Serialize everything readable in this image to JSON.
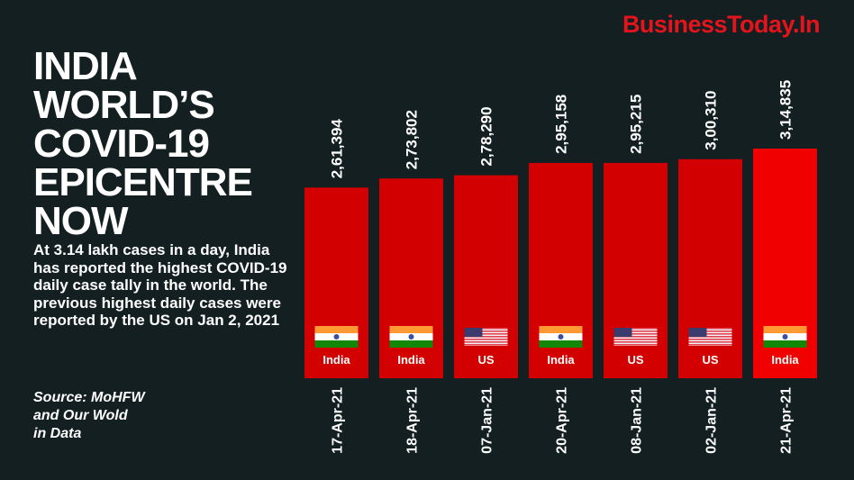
{
  "logo": "BusinessToday.In",
  "title": "INDIA WORLD’S COVID-19 EPICENTRE NOW",
  "title_lines": [
    "INDIA",
    "WORLD’S",
    "COVID-19",
    "EPICENTRE",
    "NOW"
  ],
  "description": "At 3.14 lakh cases in a day, India has reported the highest COVID-19 daily case tally in the world. The previous highest daily cases were reported by the US on Jan 2, 2021",
  "source": "Source: MoHFW\nand Our Wold\nin Data",
  "colors": {
    "background": "#141f22",
    "bar": "#d20000",
    "bar_highlight": "#f00000",
    "logo": "#e3141b"
  },
  "chart_data": {
    "type": "bar",
    "categories": [
      "17-Apr-21",
      "18-Apr-21",
      "07-Jan-21",
      "20-Apr-21",
      "08-Jan-21",
      "02-Jan-21",
      "21-Apr-21"
    ],
    "values": [
      261394,
      273802,
      278290,
      295158,
      295215,
      300310,
      314835
    ],
    "data_labels": [
      "2,61,394",
      "2,73,802",
      "2,78,290",
      "2,95,158",
      "2,95,215",
      "3,00,310",
      "3,14,835"
    ],
    "countries": [
      "India",
      "India",
      "US",
      "India",
      "US",
      "US",
      "India"
    ],
    "ylim": [
      0,
      314835
    ],
    "grid": false
  }
}
